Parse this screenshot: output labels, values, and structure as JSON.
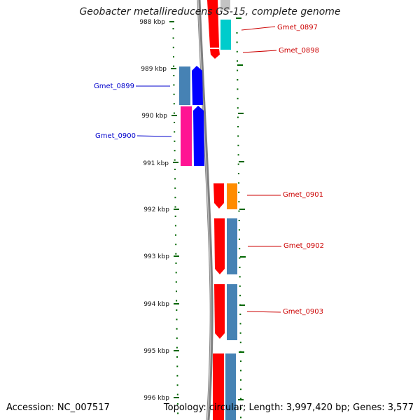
{
  "title": "Geobacter metallireducens GS-15, complete genome",
  "footer": {
    "accession": "Accession: NC_007517",
    "summary": "Topology: circular; Length: 3,997,420 bp; Genes: 3,577"
  },
  "colors": {
    "left_label": "#0000cc",
    "right_label": "#cc0000",
    "tick": "#006600",
    "backbone": "#808080",
    "gene_red": "#ff0000",
    "gene_blue": "#0000ff",
    "gene_steelblue": "#4682b4",
    "gene_cyan": "#00cccc",
    "gene_pink": "#ff1493",
    "gene_orange": "#ff8c00"
  },
  "kbp_labels": [
    "988 kbp",
    "989 kbp",
    "990 kbp",
    "991 kbp",
    "992 kbp",
    "993 kbp",
    "994 kbp",
    "995 kbp",
    "996 kbp"
  ],
  "left_genes": [
    {
      "label": "Gmet_0899"
    },
    {
      "label": "Gmet_0900"
    }
  ],
  "right_genes": [
    {
      "label": "Gmet_0897"
    },
    {
      "label": "Gmet_0898"
    },
    {
      "label": "Gmet_0901"
    },
    {
      "label": "Gmet_0902"
    },
    {
      "label": "Gmet_0903"
    }
  ]
}
